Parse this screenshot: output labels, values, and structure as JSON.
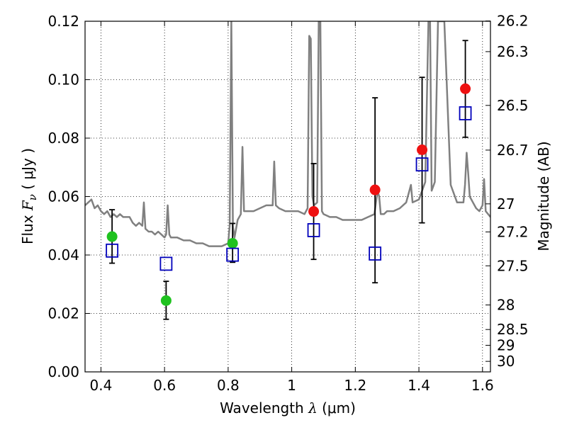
{
  "chart_data": {
    "type": "scatter",
    "xlabel": {
      "prefix": "Wavelength  ",
      "symbol": "λ",
      "unit": " (μm)"
    },
    "ylabel": {
      "prefix": "Flux  ",
      "symbol": "F",
      "subscript": "ν",
      "unit": "  ( μJy )"
    },
    "y2label": "Magnitude (AB)",
    "xlim": [
      0.35,
      1.625
    ],
    "ylim": [
      0.0,
      0.12
    ],
    "x_ticks": [
      0.4,
      0.6,
      0.8,
      1.0,
      1.2,
      1.4,
      1.6
    ],
    "x_tick_labels": [
      "0.4",
      "0.6",
      "0.8",
      "1",
      "1.2",
      "1.4",
      "1.6"
    ],
    "y_ticks": [
      0.0,
      0.02,
      0.04,
      0.06,
      0.08,
      0.1,
      0.12
    ],
    "y_tick_labels": [
      "0.00",
      "0.02",
      "0.04",
      "0.06",
      "0.08",
      "0.10",
      "0.12"
    ],
    "y2_ticks": [
      {
        "flux": 0.1201,
        "label": "26.2"
      },
      {
        "flux": 0.1096,
        "label": "26.3"
      },
      {
        "flux": 0.0912,
        "label": "26.5"
      },
      {
        "flux": 0.0759,
        "label": "26.7"
      },
      {
        "flux": 0.0575,
        "label": "27"
      },
      {
        "flux": 0.0479,
        "label": "27.2"
      },
      {
        "flux": 0.0363,
        "label": "27.5"
      },
      {
        "flux": 0.0229,
        "label": "28"
      },
      {
        "flux": 0.0145,
        "label": "28.5"
      },
      {
        "flux": 0.0091,
        "label": "29"
      },
      {
        "flux": 0.0036,
        "label": "30"
      }
    ],
    "grid": true,
    "series": [
      {
        "marker": "circle",
        "color": "#1fc21f",
        "x": [
          0.435,
          0.605,
          0.814
        ],
        "y": [
          0.0463,
          0.0244,
          0.044
        ],
        "err_low": [
          0.0372,
          0.018,
          0.0375
        ],
        "err_high": [
          0.0555,
          0.031,
          0.0508
        ]
      },
      {
        "marker": "circle",
        "color": "#ee1111",
        "x": [
          1.069,
          1.262,
          1.41,
          1.546
        ],
        "y": [
          0.0549,
          0.0623,
          0.076,
          0.0969
        ],
        "err_low": [
          0.0385,
          0.0305,
          0.051,
          0.0803
        ],
        "err_high": [
          0.0713,
          0.0938,
          0.1008,
          0.1134
        ]
      },
      {
        "marker": "open-square",
        "color": "#0000bb",
        "x": [
          0.435,
          0.605,
          0.814,
          1.069,
          1.262,
          1.41,
          1.546
        ],
        "y": [
          0.0415,
          0.037,
          0.0401,
          0.0485,
          0.0405,
          0.071,
          0.0885
        ]
      },
      {
        "type": "line",
        "color": "#808080",
        "x": [
          0.35,
          0.36,
          0.37,
          0.38,
          0.39,
          0.4,
          0.41,
          0.42,
          0.43,
          0.44,
          0.45,
          0.46,
          0.47,
          0.48,
          0.49,
          0.5,
          0.51,
          0.52,
          0.53,
          0.535,
          0.54,
          0.55,
          0.56,
          0.57,
          0.58,
          0.59,
          0.6,
          0.605,
          0.61,
          0.615,
          0.62,
          0.64,
          0.66,
          0.68,
          0.7,
          0.72,
          0.74,
          0.76,
          0.78,
          0.8,
          0.805,
          0.81,
          0.815,
          0.82,
          0.83,
          0.84,
          0.845,
          0.85,
          0.86,
          0.88,
          0.9,
          0.92,
          0.94,
          0.945,
          0.95,
          0.96,
          0.98,
          1.0,
          1.02,
          1.04,
          1.05,
          1.055,
          1.06,
          1.065,
          1.07,
          1.08,
          1.085,
          1.09,
          1.095,
          1.1,
          1.12,
          1.14,
          1.16,
          1.18,
          1.2,
          1.22,
          1.24,
          1.26,
          1.27,
          1.275,
          1.28,
          1.29,
          1.3,
          1.32,
          1.34,
          1.36,
          1.37,
          1.375,
          1.38,
          1.4,
          1.42,
          1.43,
          1.435,
          1.44,
          1.45,
          1.46,
          1.48,
          1.5,
          1.52,
          1.54,
          1.545,
          1.55,
          1.555,
          1.56,
          1.57,
          1.58,
          1.59,
          1.6,
          1.605,
          1.61,
          1.625
        ],
        "y": [
          0.057,
          0.058,
          0.059,
          0.056,
          0.057,
          0.055,
          0.054,
          0.055,
          0.053,
          0.054,
          0.053,
          0.054,
          0.053,
          0.053,
          0.053,
          0.051,
          0.05,
          0.051,
          0.05,
          0.058,
          0.049,
          0.048,
          0.048,
          0.047,
          0.048,
          0.047,
          0.046,
          0.047,
          0.057,
          0.047,
          0.046,
          0.046,
          0.045,
          0.045,
          0.044,
          0.044,
          0.043,
          0.043,
          0.043,
          0.044,
          0.05,
          0.12,
          0.05,
          0.046,
          0.052,
          0.054,
          0.077,
          0.055,
          0.055,
          0.055,
          0.056,
          0.057,
          0.057,
          0.072,
          0.057,
          0.056,
          0.055,
          0.055,
          0.055,
          0.054,
          0.056,
          0.115,
          0.114,
          0.06,
          0.057,
          0.058,
          0.12,
          0.12,
          0.055,
          0.054,
          0.053,
          0.053,
          0.052,
          0.052,
          0.052,
          0.052,
          0.053,
          0.054,
          0.062,
          0.06,
          0.054,
          0.054,
          0.055,
          0.055,
          0.056,
          0.058,
          0.062,
          0.064,
          0.058,
          0.059,
          0.065,
          0.12,
          0.12,
          0.062,
          0.065,
          0.12,
          0.12,
          0.064,
          0.058,
          0.058,
          0.064,
          0.075,
          0.068,
          0.06,
          0.058,
          0.056,
          0.055,
          0.057,
          0.066,
          0.055,
          0.053
        ]
      }
    ]
  }
}
